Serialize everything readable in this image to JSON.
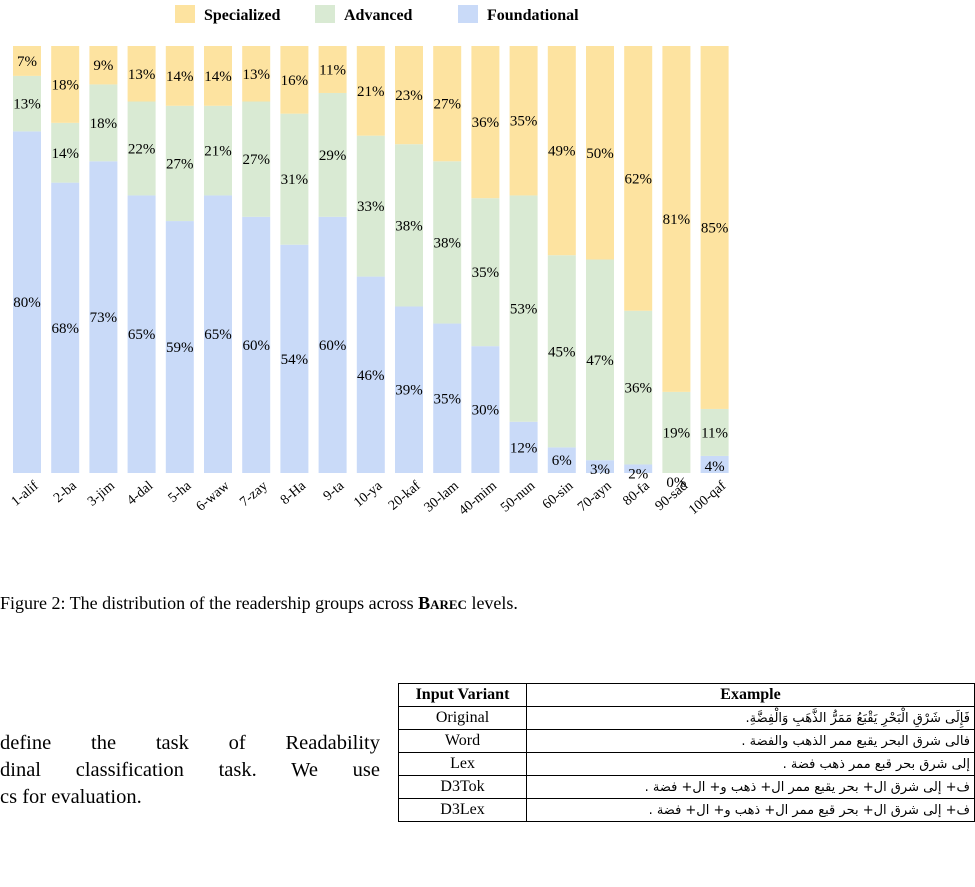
{
  "legend": [
    {
      "label": "Specialized",
      "color": "#fde3a0"
    },
    {
      "label": "Advanced",
      "color": "#d9ead3"
    },
    {
      "label": "Foundational",
      "color": "#c9daf8"
    }
  ],
  "chart_data": {
    "type": "bar",
    "stacked": true,
    "categories": [
      "1-alif",
      "2-ba",
      "3-jim",
      "4-dal",
      "5-ha",
      "6-waw",
      "7-zay",
      "8-Ha",
      "9-ta",
      "10-ya",
      "20-kaf",
      "30-lam",
      "40-mim",
      "50-nun",
      "60-sin",
      "70-ayn",
      "80-fa",
      "90-sad",
      "100-qaf"
    ],
    "series": [
      {
        "name": "Foundational",
        "color": "#c9daf8",
        "values": [
          80,
          68,
          73,
          65,
          59,
          65,
          60,
          54,
          60,
          46,
          39,
          35,
          30,
          12,
          6,
          3,
          2,
          0,
          4
        ]
      },
      {
        "name": "Advanced",
        "color": "#d9ead3",
        "values": [
          13,
          14,
          18,
          22,
          27,
          21,
          27,
          31,
          29,
          33,
          38,
          38,
          35,
          53,
          45,
          47,
          36,
          19,
          11
        ]
      },
      {
        "name": "Specialized",
        "color": "#fde3a0",
        "values": [
          7,
          18,
          9,
          13,
          14,
          14,
          13,
          16,
          11,
          21,
          23,
          27,
          36,
          35,
          49,
          50,
          62,
          81,
          85
        ]
      }
    ],
    "ylim": [
      0,
      100
    ],
    "legend_position": "top",
    "grid": false
  },
  "caption": {
    "prefix": "Figure 2: The distribution of the readership groups across ",
    "emphasis": "Barec",
    "suffix": " levels."
  },
  "body_text": [
    "define the task of Readability",
    "dinal classification task. We use",
    "cs for evaluation."
  ],
  "table": {
    "headers": [
      "Input Variant",
      "Example"
    ],
    "rows": [
      {
        "variant": "Original",
        "example": "فَإِلَى شَرْقِ الْبَحْرِ يَقْبَعُ مَمَرُّ الذَّهَبِ وَالْفِضَّةِ."
      },
      {
        "variant": "Word",
        "example": "فالى شرق البحر يقبع ممر الذهب والفضة ."
      },
      {
        "variant": "Lex",
        "example": "إلى شرق بحر قبع ممر ذهب فضة ."
      },
      {
        "variant": "D3Tok",
        "example": "ف+ إلى شرق ال+ بحر يقبع ممر ال+ ذهب و+ ال+ فضة ."
      },
      {
        "variant": "D3Lex",
        "example": "ف+ إلى شرق ال+ بحر قبع ممر ال+ ذهب و+ ال+ فضة ."
      }
    ]
  }
}
